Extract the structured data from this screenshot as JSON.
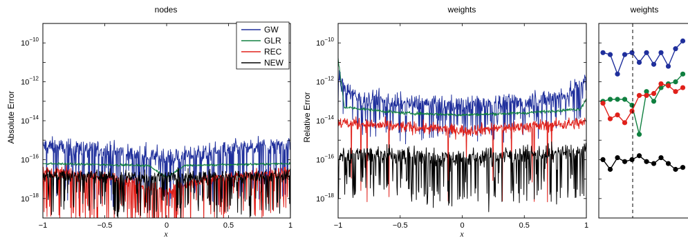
{
  "chart_data": [
    {
      "id": "nodes",
      "type": "line",
      "title": "nodes",
      "xlabel": "x",
      "ylabel": "Absolute Error",
      "xlim": [
        -1,
        1
      ],
      "ylim_log10": [
        -19,
        -9
      ],
      "yscale": "log",
      "x_ticks": [
        "−1",
        "−0.5",
        "0",
        "0.5",
        "1"
      ],
      "y_ticks": [
        {
          "base": "10",
          "exp": "−10"
        },
        {
          "base": "10",
          "exp": "−12"
        },
        {
          "base": "10",
          "exp": "−14"
        },
        {
          "base": "10",
          "exp": "−16"
        },
        {
          "base": "10",
          "exp": "−18"
        }
      ],
      "legend": {
        "placement": "top-right"
      },
      "series": [
        {
          "name": "GW",
          "color": "#1f2f9c",
          "profile": [
            [
              -1,
              -15.3
            ],
            [
              -0.5,
              -15.5
            ],
            [
              0,
              -15.9
            ],
            [
              0.5,
              -15.5
            ],
            [
              1,
              -15.2
            ]
          ],
          "noise": 0.45,
          "spikes": 0.22,
          "spike_depth": 1.8
        },
        {
          "name": "GLR",
          "color": "#108040",
          "profile": [
            [
              -1,
              -16.2
            ],
            [
              -0.15,
              -16.3
            ],
            [
              0,
              -16.9
            ],
            [
              0.15,
              -16.3
            ],
            [
              1,
              -16.2
            ]
          ],
          "noise": 0.06,
          "spikes": 0.0,
          "spike_depth": 0
        },
        {
          "name": "REC",
          "color": "#e0201a",
          "profile": [
            [
              -1,
              -16.6
            ],
            [
              -0.35,
              -17.0
            ],
            [
              0,
              -17.6
            ],
            [
              0.35,
              -17.0
            ],
            [
              1,
              -16.6
            ]
          ],
          "noise": 0.3,
          "spikes": 0.18,
          "spike_depth": 1.6
        },
        {
          "name": "NEW",
          "color": "#000000",
          "profile": [
            [
              -1,
              -16.8
            ],
            [
              0,
              -16.9
            ],
            [
              1,
              -16.8
            ]
          ],
          "noise": 0.35,
          "spikes": 0.18,
          "spike_depth": 1.4
        }
      ]
    },
    {
      "id": "weights",
      "type": "line",
      "title": "weights",
      "xlabel": "x",
      "ylabel": "Relative Error",
      "xlim": [
        -1,
        1
      ],
      "ylim_log10": [
        -19,
        -9
      ],
      "yscale": "log",
      "x_ticks": [
        "−1",
        "−0.5",
        "0",
        "0.5",
        "1"
      ],
      "y_ticks": [
        {
          "base": "10",
          "exp": "−10"
        },
        {
          "base": "10",
          "exp": "−12"
        },
        {
          "base": "10",
          "exp": "−14"
        },
        {
          "base": "10",
          "exp": "−16"
        },
        {
          "base": "10",
          "exp": "−18"
        }
      ],
      "series": [
        {
          "name": "GW",
          "color": "#1f2f9c",
          "profile": [
            [
              -1,
              -11.8
            ],
            [
              -0.85,
              -12.8
            ],
            [
              -0.5,
              -13.1
            ],
            [
              0,
              -13.2
            ],
            [
              0.5,
              -13.0
            ],
            [
              0.85,
              -12.7
            ],
            [
              1,
              -11.8
            ]
          ],
          "noise": 0.45,
          "spikes": 0.2,
          "spike_depth": 1.2
        },
        {
          "name": "GLR",
          "color": "#108040",
          "profile": [
            [
              -1,
              -10.8
            ],
            [
              -0.95,
              -13.3
            ],
            [
              -0.5,
              -13.6
            ],
            [
              0,
              -13.7
            ],
            [
              0.5,
              -13.6
            ],
            [
              0.95,
              -13.4
            ],
            [
              1,
              -12.9
            ]
          ],
          "noise": 0.08,
          "spikes": 0.0,
          "spike_depth": 0
        },
        {
          "name": "REC",
          "color": "#e0201a",
          "profile": [
            [
              -1,
              -14.1
            ],
            [
              0,
              -14.5
            ],
            [
              1,
              -14.1
            ]
          ],
          "noise": 0.3,
          "spikes": 0.03,
          "spike_depth": 2.8
        },
        {
          "name": "NEW",
          "color": "#000000",
          "profile": [
            [
              -1,
              -15.7
            ],
            [
              0,
              -15.9
            ],
            [
              1,
              -15.6
            ]
          ],
          "noise": 0.45,
          "spikes": 0.22,
          "spike_depth": 1.6
        }
      ]
    },
    {
      "id": "weights-zoom",
      "type": "line",
      "title": "weights",
      "markers": true,
      "yscale": "log",
      "ylim_log10": [
        -19,
        -9
      ],
      "series": [
        {
          "name": "GW",
          "color": "#1f2f9c",
          "y_log10": [
            -10.5,
            -10.6,
            -11.6,
            -10.6,
            -10.5,
            -11.0,
            -10.5,
            -11.1,
            -10.5,
            -11.2,
            -10.3,
            -9.9
          ]
        },
        {
          "name": "GLR",
          "color": "#108040",
          "y_log10": [
            -13.0,
            -12.9,
            -12.9,
            -12.9,
            -13.2,
            -14.7,
            -12.5,
            -13.0,
            -12.3,
            -12.1,
            -12.0,
            -11.6
          ]
        },
        {
          "name": "REC",
          "color": "#e0201a",
          "y_log10": [
            -13.1,
            -13.9,
            -13.7,
            -14.1,
            -13.5,
            -12.7,
            -12.7,
            -12.6,
            -12.1,
            -12.2,
            -12.5,
            -12.3
          ]
        },
        {
          "name": "NEW",
          "color": "#000000",
          "y_log10": [
            -16.0,
            -16.5,
            -15.9,
            -16.1,
            -16.0,
            -15.8,
            -16.1,
            -16.2,
            -15.9,
            -16.2,
            -16.5,
            -16.4
          ]
        }
      ]
    }
  ]
}
